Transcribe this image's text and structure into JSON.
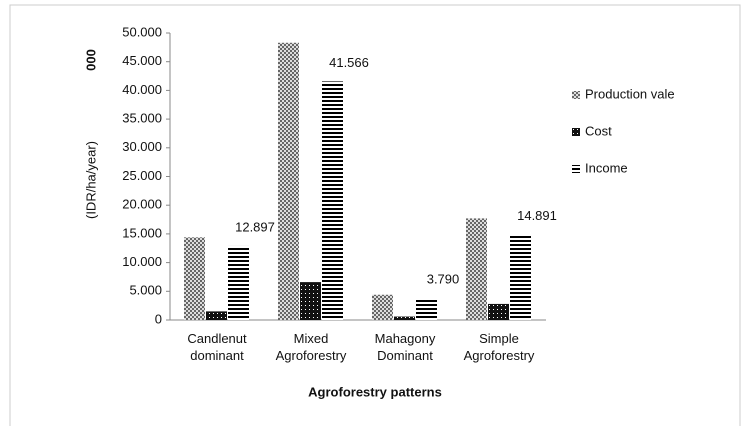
{
  "chart_data": {
    "type": "bar",
    "categories": [
      "Candlenut dominant",
      "Mixed Agroforestry",
      "Mahagony Dominant",
      "Simple Agroforestry"
    ],
    "series": [
      {
        "name": "Production vale",
        "color": "#666666",
        "values": [
          14400,
          48300,
          4400,
          17700
        ]
      },
      {
        "name": "Cost",
        "color": "#111111",
        "values": [
          1500,
          6600,
          600,
          2800
        ]
      },
      {
        "name": "Income",
        "color": "#000000",
        "values": [
          12897,
          41566,
          3790,
          14891
        ],
        "value_labels": [
          "12.897",
          "41.566",
          "3.790",
          "14.891"
        ]
      }
    ],
    "y_label_unit": "000",
    "y_label": "(IDR/ha/year)",
    "x_label": "Agroforestry patterns",
    "ylim": [
      0,
      50000
    ],
    "yticks": [
      0,
      {
        "value": 5000,
        "label": "5.000"
      },
      {
        "value": 10000,
        "label": "10.000"
      },
      {
        "value": 15000,
        "label": "15.000"
      },
      {
        "value": 20000,
        "label": "20.000"
      },
      {
        "value": 25000,
        "label": "25.000"
      },
      {
        "value": 30000,
        "label": "30.000"
      },
      {
        "value": 35000,
        "label": "35.000"
      },
      {
        "value": 40000,
        "label": "40.000"
      },
      {
        "value": 45000,
        "label": "45.000"
      },
      {
        "value": 50000,
        "label": "50.000"
      }
    ],
    "legend": "right",
    "grid": false
  }
}
